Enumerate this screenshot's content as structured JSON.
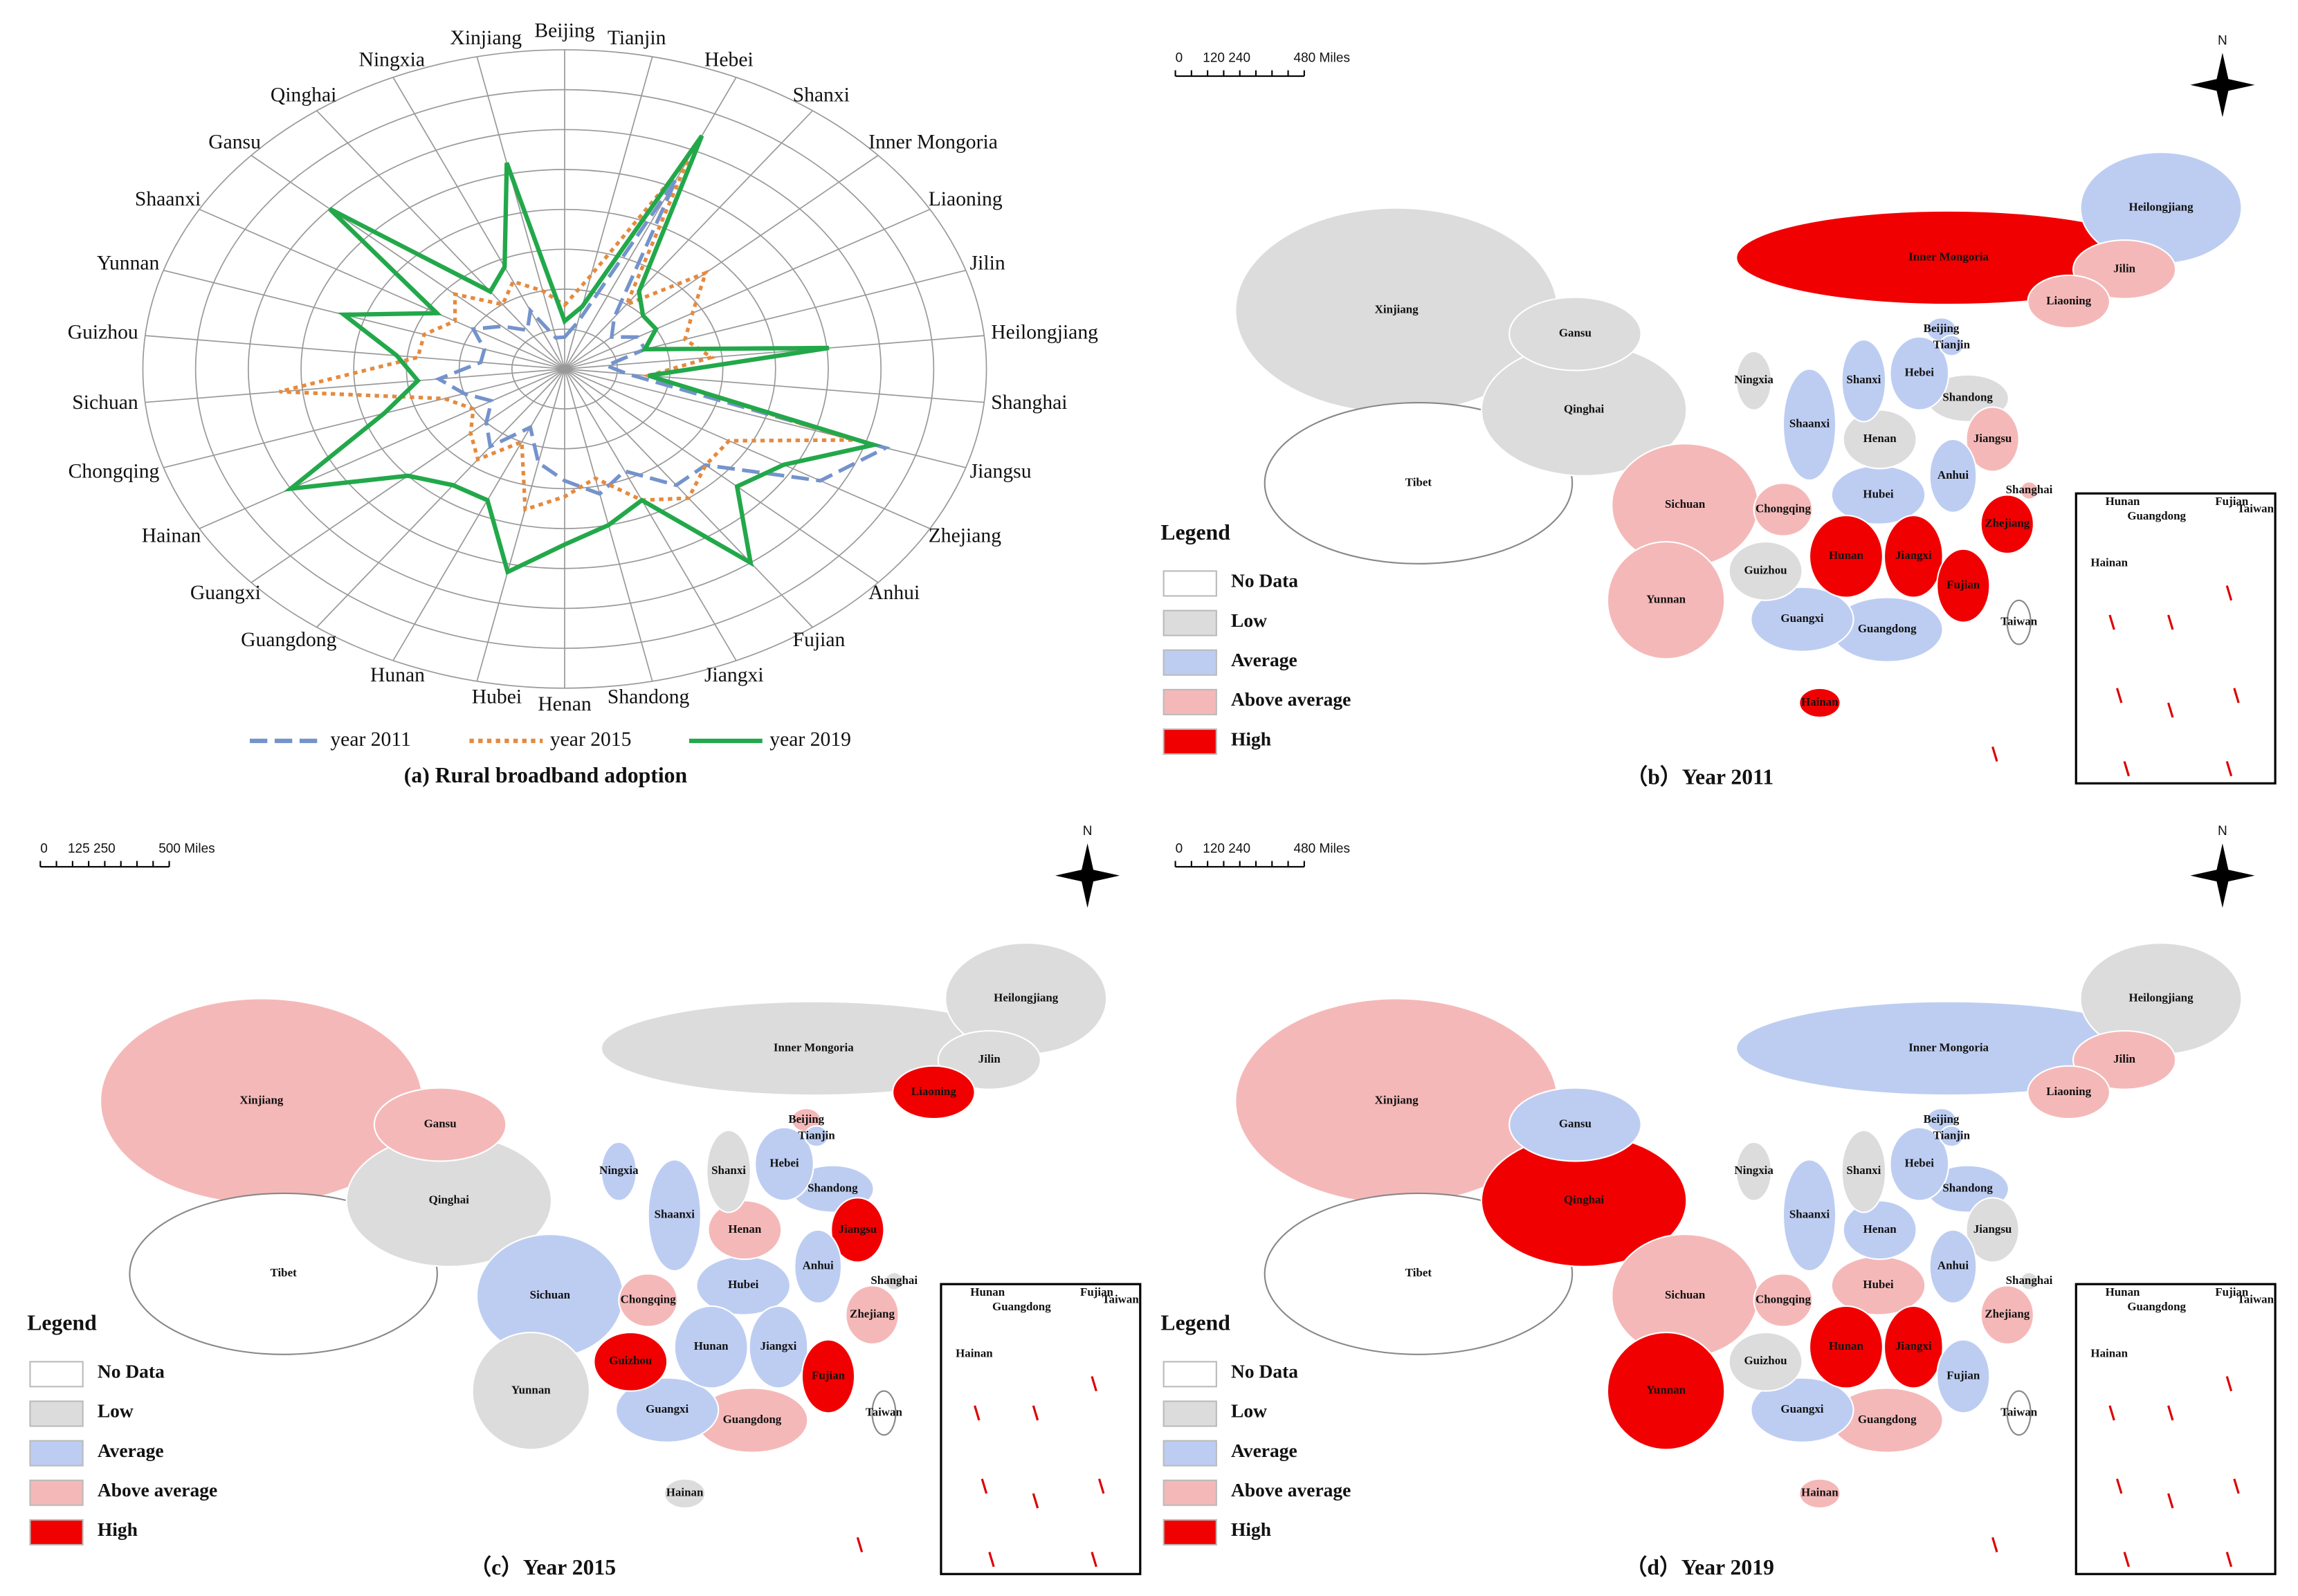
{
  "chart_data": {
    "type": "radar",
    "caption": "(a) Rural broadband adoption",
    "rlim": [
      0,
      1
    ],
    "categories": [
      "Beijing",
      "Tianjin",
      "Hebei",
      "Shanxi",
      "Inner Mongoria",
      "Liaoning",
      "Jilin",
      "Heilongjiang",
      "Shanghai",
      "Jiangsu",
      "Zhejiang",
      "Anhui",
      "Fujian",
      "Jiangxi",
      "Shandong",
      "Henan",
      "Hubei",
      "Hunan",
      "Guangdong",
      "Guangxi",
      "Hainan",
      "Chongqing",
      "Sichuan",
      "Guizhou",
      "Yunnan",
      "Shaanxi",
      "Gansu",
      "Qinghai",
      "Ningxia",
      "Xinjiang"
    ],
    "series": [
      {
        "name": "year 2011",
        "color": "#7493cc",
        "line_style": "dashed",
        "values": [
          0.1,
          0.15,
          0.65,
          0.2,
          0.15,
          0.2,
          0.2,
          0.1,
          0.15,
          0.8,
          0.7,
          0.45,
          0.45,
          0.35,
          0.4,
          0.35,
          0.3,
          0.2,
          0.3,
          0.25,
          0.2,
          0.25,
          0.3,
          0.2,
          0.2,
          0.25,
          0.2,
          0.15,
          0.2,
          0.1
        ]
      },
      {
        "name": "year 2015",
        "color": "#e58a3e",
        "line_style": "dotted",
        "values": [
          0.2,
          0.3,
          0.72,
          0.25,
          0.45,
          0.35,
          0.3,
          0.35,
          0.2,
          0.72,
          0.45,
          0.45,
          0.5,
          0.45,
          0.35,
          0.4,
          0.45,
          0.25,
          0.35,
          0.3,
          0.25,
          0.3,
          0.68,
          0.35,
          0.35,
          0.3,
          0.35,
          0.25,
          0.3,
          0.25
        ]
      },
      {
        "name": "year 2019",
        "color": "#22a84a",
        "line_style": "solid",
        "values": [
          0.15,
          0.2,
          0.8,
          0.3,
          0.25,
          0.25,
          0.2,
          0.63,
          0.2,
          0.77,
          0.6,
          0.55,
          0.75,
          0.45,
          0.5,
          0.55,
          0.65,
          0.45,
          0.45,
          0.5,
          0.75,
          0.45,
          0.35,
          0.4,
          0.55,
          0.35,
          0.75,
          0.3,
          0.35,
          0.66
        ]
      }
    ]
  },
  "maps": [
    {
      "caption": "（b）Year 2011",
      "scale_labels": [
        "0",
        "120 240",
        "480 Miles"
      ],
      "north": "N",
      "legend": {
        "title": "Legend",
        "items": [
          {
            "label": "No Data",
            "color": "#ffffff"
          },
          {
            "label": "Low",
            "color": "#dcdcdc"
          },
          {
            "label": "Average",
            "color": "#bdcdf2"
          },
          {
            "label": "Above average",
            "color": "#f5b8b8"
          },
          {
            "label": "High",
            "color": "#f00000"
          }
        ]
      },
      "inset_labels": [
        "Hunan",
        "Fujian",
        "Taiwan",
        "Guangdong",
        "Hainan"
      ],
      "provinces": [
        {
          "name": "Xinjiang",
          "level": 1
        },
        {
          "name": "Tibet",
          "level": 0
        },
        {
          "name": "Inner Mongoria",
          "level": 4
        },
        {
          "name": "Qinghai",
          "level": 1
        },
        {
          "name": "Heilongjiang",
          "level": 2
        },
        {
          "name": "Sichuan",
          "level": 3
        },
        {
          "name": "Gansu",
          "level": 1
        },
        {
          "name": "Yunnan",
          "level": 3
        },
        {
          "name": "Jilin",
          "level": 3
        },
        {
          "name": "Guangdong",
          "level": 2
        },
        {
          "name": "Guangxi",
          "level": 2
        },
        {
          "name": "Hubei",
          "level": 2
        },
        {
          "name": "Liaoning",
          "level": 3
        },
        {
          "name": "Shaanxi",
          "level": 2
        },
        {
          "name": "Hunan",
          "level": 4
        },
        {
          "name": "Shandong",
          "level": 1
        },
        {
          "name": "Henan",
          "level": 1
        },
        {
          "name": "Guizhou",
          "level": 1
        },
        {
          "name": "Jiangxi",
          "level": 4
        },
        {
          "name": "Hebei",
          "level": 2
        },
        {
          "name": "Shanxi",
          "level": 2
        },
        {
          "name": "Fujian",
          "level": 4
        },
        {
          "name": "Chongqing",
          "level": 3
        },
        {
          "name": "Zhejiang",
          "level": 4
        },
        {
          "name": "Jiangsu",
          "level": 3
        },
        {
          "name": "Anhui",
          "level": 2
        },
        {
          "name": "Ningxia",
          "level": 1
        },
        {
          "name": "Hainan",
          "level": 4
        },
        {
          "name": "Taiwan",
          "level": 0
        },
        {
          "name": "Beijing",
          "level": 2
        },
        {
          "name": "Tianjin",
          "level": 2
        },
        {
          "name": "Shanghai",
          "level": 3
        }
      ]
    },
    {
      "caption": "（c）Year 2015",
      "scale_labels": [
        "0",
        "125 250",
        "500 Miles"
      ],
      "north": "N",
      "legend": {
        "title": "Legend",
        "items": [
          {
            "label": "No Data",
            "color": "#ffffff"
          },
          {
            "label": "Low",
            "color": "#dcdcdc"
          },
          {
            "label": "Average",
            "color": "#bdcdf2"
          },
          {
            "label": "Above average",
            "color": "#f5b8b8"
          },
          {
            "label": "High",
            "color": "#f00000"
          }
        ]
      },
      "inset_labels": [
        "Hunan",
        "Fujian",
        "Taiwan",
        "Guangdong",
        "Hainan"
      ],
      "provinces": [
        {
          "name": "Xinjiang",
          "level": 3
        },
        {
          "name": "Tibet",
          "level": 0
        },
        {
          "name": "Inner Mongoria",
          "level": 1
        },
        {
          "name": "Qinghai",
          "level": 1
        },
        {
          "name": "Heilongjiang",
          "level": 1
        },
        {
          "name": "Sichuan",
          "level": 2
        },
        {
          "name": "Gansu",
          "level": 3
        },
        {
          "name": "Yunnan",
          "level": 1
        },
        {
          "name": "Jilin",
          "level": 1
        },
        {
          "name": "Guangdong",
          "level": 3
        },
        {
          "name": "Guangxi",
          "level": 2
        },
        {
          "name": "Hubei",
          "level": 2
        },
        {
          "name": "Liaoning",
          "level": 4
        },
        {
          "name": "Shaanxi",
          "level": 2
        },
        {
          "name": "Hunan",
          "level": 2
        },
        {
          "name": "Shandong",
          "level": 2
        },
        {
          "name": "Henan",
          "level": 3
        },
        {
          "name": "Guizhou",
          "level": 4
        },
        {
          "name": "Jiangxi",
          "level": 2
        },
        {
          "name": "Hebei",
          "level": 2
        },
        {
          "name": "Shanxi",
          "level": 1
        },
        {
          "name": "Fujian",
          "level": 4
        },
        {
          "name": "Chongqing",
          "level": 3
        },
        {
          "name": "Zhejiang",
          "level": 3
        },
        {
          "name": "Jiangsu",
          "level": 4
        },
        {
          "name": "Anhui",
          "level": 2
        },
        {
          "name": "Ningxia",
          "level": 2
        },
        {
          "name": "Hainan",
          "level": 1
        },
        {
          "name": "Taiwan",
          "level": 0
        },
        {
          "name": "Beijing",
          "level": 3
        },
        {
          "name": "Tianjin",
          "level": 2
        },
        {
          "name": "Shanghai",
          "level": 1
        }
      ]
    },
    {
      "caption": "（d）Year 2019",
      "scale_labels": [
        "0",
        "120 240",
        "480 Miles"
      ],
      "north": "N",
      "legend": {
        "title": "Legend",
        "items": [
          {
            "label": "No Data",
            "color": "#ffffff"
          },
          {
            "label": "Low",
            "color": "#dcdcdc"
          },
          {
            "label": "Average",
            "color": "#bdcdf2"
          },
          {
            "label": "Above average",
            "color": "#f5b8b8"
          },
          {
            "label": "High",
            "color": "#f00000"
          }
        ]
      },
      "inset_labels": [
        "Hunan",
        "Fujian",
        "Taiwan",
        "Guangdong",
        "Hainan"
      ],
      "provinces": [
        {
          "name": "Xinjiang",
          "level": 3
        },
        {
          "name": "Tibet",
          "level": 0
        },
        {
          "name": "Inner Mongoria",
          "level": 2
        },
        {
          "name": "Qinghai",
          "level": 4
        },
        {
          "name": "Heilongjiang",
          "level": 1
        },
        {
          "name": "Sichuan",
          "level": 3
        },
        {
          "name": "Gansu",
          "level": 2
        },
        {
          "name": "Yunnan",
          "level": 4
        },
        {
          "name": "Jilin",
          "level": 3
        },
        {
          "name": "Guangdong",
          "level": 3
        },
        {
          "name": "Guangxi",
          "level": 2
        },
        {
          "name": "Hubei",
          "level": 3
        },
        {
          "name": "Liaoning",
          "level": 3
        },
        {
          "name": "Shaanxi",
          "level": 2
        },
        {
          "name": "Hunan",
          "level": 4
        },
        {
          "name": "Shandong",
          "level": 2
        },
        {
          "name": "Henan",
          "level": 2
        },
        {
          "name": "Guizhou",
          "level": 1
        },
        {
          "name": "Jiangxi",
          "level": 4
        },
        {
          "name": "Hebei",
          "level": 2
        },
        {
          "name": "Shanxi",
          "level": 1
        },
        {
          "name": "Fujian",
          "level": 2
        },
        {
          "name": "Chongqing",
          "level": 3
        },
        {
          "name": "Zhejiang",
          "level": 3
        },
        {
          "name": "Jiangsu",
          "level": 1
        },
        {
          "name": "Anhui",
          "level": 2
        },
        {
          "name": "Ningxia",
          "level": 1
        },
        {
          "name": "Hainan",
          "level": 3
        },
        {
          "name": "Taiwan",
          "level": 0
        },
        {
          "name": "Beijing",
          "level": 2
        },
        {
          "name": "Tianjin",
          "level": 2
        },
        {
          "name": "Shanghai",
          "level": 1
        }
      ]
    }
  ]
}
